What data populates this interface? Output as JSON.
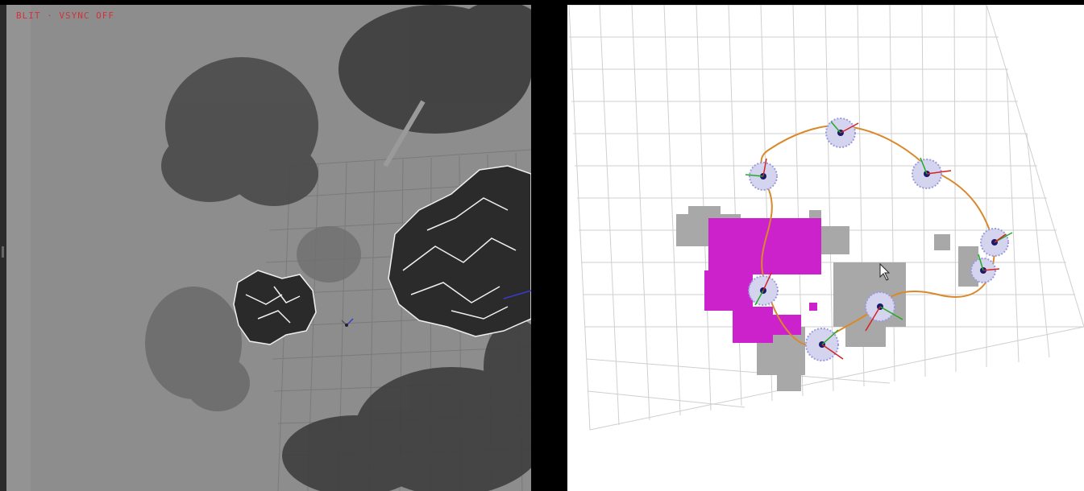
{
  "left_view": {
    "hud_text": "BLIT · VSYNC OFF"
  },
  "right_view": {
    "trajectory_color": "#d9892a",
    "voxel_highlight_color": "#cc22cc",
    "voxel_default_color": "#a8a8a8",
    "pose_marker_color": "#9a9ae0"
  },
  "colors": {
    "viewport_bg": "#8d8d8d",
    "plot_bg": "#ffffff",
    "hud_red": "#d8303a",
    "grid_line": "#c8c8c8"
  }
}
